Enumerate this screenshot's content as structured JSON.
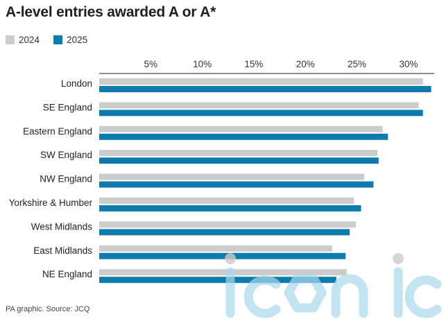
{
  "title": "A-level entries awarded A or A*",
  "source": "PA graphic. Source: JCQ",
  "watermark": {
    "text": "iconic"
  },
  "colors": {
    "2024": "#cccccc",
    "2025": "#0e7baf",
    "axis": "#222222"
  },
  "chart_data": {
    "type": "bar",
    "orientation": "horizontal",
    "title": "A-level entries awarded A or A*",
    "xlabel": "",
    "ylabel": "",
    "xlim": [
      0,
      32.5
    ],
    "ticks": [
      {
        "value": 5,
        "label": "5%"
      },
      {
        "value": 10,
        "label": "10%"
      },
      {
        "value": 15,
        "label": "15%"
      },
      {
        "value": 20,
        "label": "20%"
      },
      {
        "value": 25,
        "label": "25%"
      },
      {
        "value": 30,
        "label": "30%"
      }
    ],
    "grid": false,
    "legend": "top-left",
    "categories": [
      "London",
      "SE England",
      "Eastern England",
      "SW England",
      "NW England",
      "Yorkshire & Humber",
      "West Midlands",
      "East Midlands",
      "NE England"
    ],
    "series": [
      {
        "name": "2024",
        "color": "#cccccc",
        "values": [
          31.4,
          31.0,
          27.5,
          27.0,
          25.7,
          24.7,
          24.9,
          22.6,
          24.0
        ]
      },
      {
        "name": "2025",
        "color": "#0e7baf",
        "values": [
          32.2,
          31.4,
          28.0,
          27.1,
          26.6,
          25.4,
          24.3,
          23.9,
          23.0
        ]
      }
    ]
  }
}
